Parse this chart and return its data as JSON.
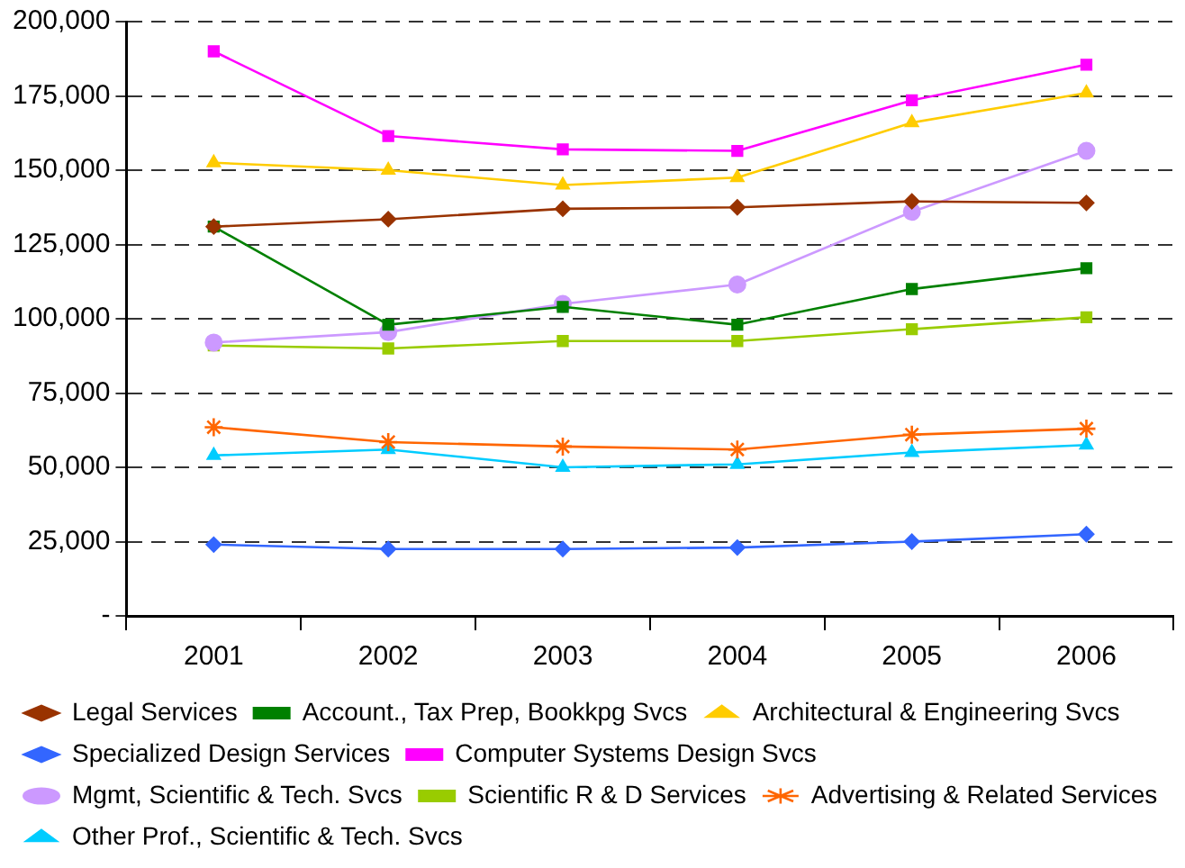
{
  "chart_data": {
    "type": "line",
    "categories": [
      "2001",
      "2002",
      "2003",
      "2004",
      "2005",
      "2006"
    ],
    "ylim": [
      0,
      200000
    ],
    "yticks": [
      {
        "value": 0,
        "label": "-"
      },
      {
        "value": 25000,
        "label": "25,000"
      },
      {
        "value": 50000,
        "label": "50,000"
      },
      {
        "value": 75000,
        "label": "75,000"
      },
      {
        "value": 100000,
        "label": "100,000"
      },
      {
        "value": 125000,
        "label": "125,000"
      },
      {
        "value": 150000,
        "label": "150,000"
      },
      {
        "value": 175000,
        "label": "175,000"
      },
      {
        "value": 200000,
        "label": "200,000"
      }
    ],
    "grid": "y",
    "legend": "bottom",
    "line_style": "solid",
    "series": [
      {
        "name": "Legal Services",
        "color": "#993300",
        "marker": "diamond",
        "values": [
          131000,
          133500,
          137000,
          137500,
          139500,
          139000
        ]
      },
      {
        "name": "Account., Tax Prep, Bookkpg Svcs",
        "color": "#008000",
        "marker": "square",
        "values": [
          131000,
          98000,
          104000,
          98000,
          110000,
          117000
        ]
      },
      {
        "name": "Architectural & Engineering Svcs",
        "color": "#ffcc00",
        "marker": "triangle",
        "values": [
          152500,
          150000,
          145000,
          147500,
          166000,
          176000
        ]
      },
      {
        "name": "Specialized Design Services",
        "color": "#3366ff",
        "marker": "diamond",
        "values": [
          24000,
          22500,
          22500,
          23000,
          25000,
          27500
        ]
      },
      {
        "name": "Computer Systems Design Svcs",
        "color": "#ff00ff",
        "marker": "square",
        "values": [
          190000,
          161500,
          157000,
          156500,
          173500,
          185500
        ]
      },
      {
        "name": "Mgmt, Scientific & Tech. Svcs",
        "color": "#cc99ff",
        "marker": "circle",
        "values": [
          92000,
          95500,
          105000,
          111500,
          136000,
          156500
        ]
      },
      {
        "name": "Scientific R & D Services",
        "color": "#99cc00",
        "marker": "square",
        "values": [
          91000,
          90000,
          92500,
          92500,
          96500,
          100500
        ]
      },
      {
        "name": "Advertising & Related Services",
        "color": "#ff6600",
        "marker": "cross",
        "values": [
          63500,
          58500,
          57000,
          56000,
          61000,
          63000
        ]
      },
      {
        "name": "Other Prof., Scientific & Tech. Svcs",
        "color": "#00ccff",
        "marker": "triangle",
        "values": [
          54000,
          56000,
          50000,
          51000,
          55000,
          57500
        ]
      }
    ]
  }
}
